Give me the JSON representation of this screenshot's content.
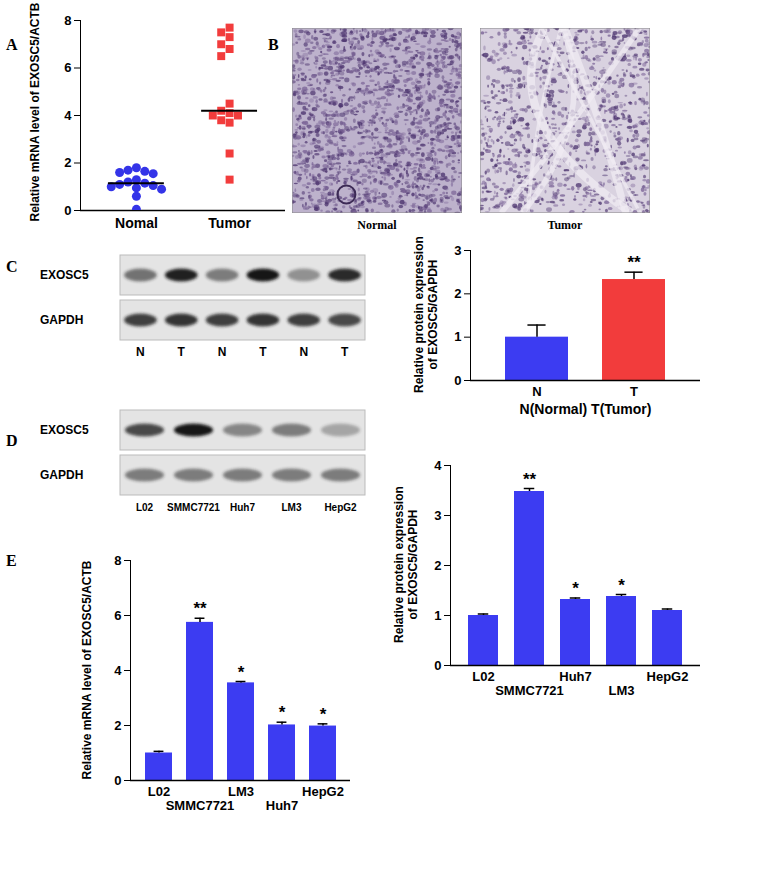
{
  "chart_data": [
    {
      "panel": "A",
      "type": "scatter",
      "ylabel": "Relative mRNA level of EXOSC5/ACTB",
      "ylim": [
        0,
        8
      ],
      "yticks": [
        0,
        2,
        4,
        6,
        8
      ],
      "series": [
        {
          "name": "Nomal",
          "color": "#3434e8",
          "marker": "circle",
          "center": 1.15,
          "values": [
            1.8,
            1.7,
            1.65,
            1.6,
            1.55,
            1.3,
            1.2,
            1.15,
            1.1,
            1.05,
            1.0,
            0.95,
            0.9,
            0.6,
            0.05
          ]
        },
        {
          "name": "Tumor",
          "color": "#f23c3c",
          "marker": "square",
          "center": 4.2,
          "values": [
            7.7,
            7.5,
            7.3,
            7.0,
            6.8,
            6.5,
            4.5,
            4.2,
            4.1,
            4.0,
            4.0,
            3.8,
            3.7,
            2.4,
            1.3
          ]
        }
      ]
    },
    {
      "panel": "C",
      "type": "bar",
      "ylabel": "Relative protein expression of EXOSC5/GAPDH",
      "xlabel": "N(Normal) T(Tumor)",
      "categories": [
        "N",
        "T"
      ],
      "values": [
        1.0,
        2.33
      ],
      "errors": [
        0.28,
        0.17
      ],
      "annotations": [
        null,
        "**"
      ],
      "colors": [
        "#3c3cf2",
        "#f23c3c"
      ],
      "ylim": [
        0,
        3
      ],
      "yticks": [
        0,
        1,
        2,
        3
      ]
    },
    {
      "panel": "D",
      "type": "bar",
      "ylabel": "Relative protein expression of EXOSC5/GAPDH",
      "categories": [
        "L02",
        "SMMC7721",
        "Huh7",
        "LM3",
        "HepG2"
      ],
      "values": [
        1.0,
        3.48,
        1.32,
        1.38,
        1.1
      ],
      "errors": [
        0.03,
        0.06,
        0.03,
        0.04,
        0.03
      ],
      "annotations": [
        null,
        "**",
        "*",
        "*",
        null
      ],
      "color": "#3c3cf2",
      "ylim": [
        0,
        4
      ],
      "yticks": [
        0,
        1,
        2,
        3,
        4
      ]
    },
    {
      "panel": "E",
      "type": "bar",
      "ylabel": "Relative mRNA level of EXOSC5/ACTB",
      "categories": [
        "L02",
        "SMMC7721",
        "LM3",
        "Huh7",
        "HepG2"
      ],
      "values": [
        1.0,
        5.75,
        3.55,
        2.02,
        1.98
      ],
      "errors": [
        0.06,
        0.15,
        0.05,
        0.1,
        0.08
      ],
      "annotations": [
        null,
        "**",
        "*",
        "*",
        "*"
      ],
      "color": "#3c3cf2",
      "ylim": [
        0,
        8
      ],
      "yticks": [
        0,
        2,
        4,
        6,
        8
      ]
    }
  ],
  "images": {
    "panel": "B",
    "labels": [
      "Normal",
      "Tumor"
    ]
  },
  "blots": [
    {
      "panel": "C",
      "lanes": [
        "N",
        "T",
        "N",
        "T",
        "N",
        "T"
      ],
      "rows": [
        {
          "name": "EXOSC5",
          "intensity": [
            0.55,
            0.95,
            0.5,
            1.0,
            0.4,
            0.9
          ]
        },
        {
          "name": "GAPDH",
          "intensity": [
            0.8,
            0.85,
            0.8,
            0.85,
            0.8,
            0.75
          ]
        }
      ]
    },
    {
      "panel": "D",
      "lanes": [
        "L02",
        "SMMC7721",
        "Huh7",
        "LM3",
        "HepG2"
      ],
      "rows": [
        {
          "name": "EXOSC5",
          "intensity": [
            0.75,
            1.0,
            0.45,
            0.5,
            0.3
          ]
        },
        {
          "name": "GAPDH",
          "intensity": [
            0.5,
            0.5,
            0.5,
            0.5,
            0.5
          ]
        }
      ]
    }
  ]
}
